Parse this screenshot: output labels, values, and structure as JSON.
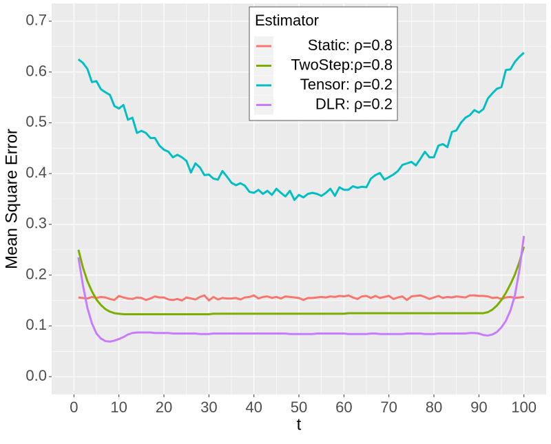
{
  "chart_data": {
    "type": "line",
    "xlabel": "t",
    "ylabel": "Mean Square Error",
    "x": [
      1,
      2,
      3,
      4,
      5,
      6,
      7,
      8,
      9,
      10,
      11,
      12,
      13,
      14,
      15,
      16,
      17,
      18,
      19,
      20,
      21,
      22,
      23,
      24,
      25,
      26,
      27,
      28,
      29,
      30,
      31,
      32,
      33,
      34,
      35,
      36,
      37,
      38,
      39,
      40,
      41,
      42,
      43,
      44,
      45,
      46,
      47,
      48,
      49,
      50,
      51,
      52,
      53,
      54,
      55,
      56,
      57,
      58,
      59,
      60,
      61,
      62,
      63,
      64,
      65,
      66,
      67,
      68,
      69,
      70,
      71,
      72,
      73,
      74,
      75,
      76,
      77,
      78,
      79,
      80,
      81,
      82,
      83,
      84,
      85,
      86,
      87,
      88,
      89,
      90,
      91,
      92,
      93,
      94,
      95,
      96,
      97,
      98,
      99,
      100
    ],
    "xlim": [
      -4.95,
      104.95
    ],
    "xticks": [
      0,
      10,
      20,
      30,
      40,
      50,
      60,
      70,
      80,
      90,
      100
    ],
    "ylim": [
      -0.035,
      0.735
    ],
    "yticks": [
      {
        "value": 0,
        "label": "0.0"
      },
      0.1,
      0.2,
      0.3,
      0.4,
      0.5,
      0.6,
      0.7
    ],
    "grid": true,
    "legend_title": "Estimator",
    "series": [
      {
        "name": "Static: ρ=0.8",
        "color": "#F8766D",
        "values": [
          0.156,
          0.155,
          0.154,
          0.157,
          0.155,
          0.157,
          0.156,
          0.153,
          0.151,
          0.159,
          0.156,
          0.154,
          0.153,
          0.156,
          0.155,
          0.151,
          0.154,
          0.158,
          0.156,
          0.156,
          0.152,
          0.151,
          0.153,
          0.15,
          0.156,
          0.154,
          0.152,
          0.157,
          0.16,
          0.15,
          0.157,
          0.152,
          0.155,
          0.154,
          0.154,
          0.155,
          0.152,
          0.156,
          0.157,
          0.16,
          0.154,
          0.157,
          0.158,
          0.155,
          0.157,
          0.154,
          0.158,
          0.157,
          0.156,
          0.155,
          0.151,
          0.155,
          0.155,
          0.156,
          0.157,
          0.156,
          0.158,
          0.157,
          0.159,
          0.158,
          0.16,
          0.156,
          0.153,
          0.158,
          0.159,
          0.155,
          0.159,
          0.155,
          0.157,
          0.159,
          0.153,
          0.156,
          0.158,
          0.151,
          0.158,
          0.159,
          0.16,
          0.157,
          0.153,
          0.156,
          0.159,
          0.155,
          0.157,
          0.156,
          0.158,
          0.157,
          0.156,
          0.16,
          0.16,
          0.159,
          0.159,
          0.158,
          0.155,
          0.156,
          0.153,
          0.156,
          0.157,
          0.155,
          0.156,
          0.157
        ]
      },
      {
        "name": "TwoStep:ρ=0.8",
        "color": "#7CAE00",
        "values": [
          0.25,
          0.215,
          0.188,
          0.168,
          0.152,
          0.141,
          0.133,
          0.128,
          0.125,
          0.124,
          0.123,
          0.123,
          0.123,
          0.123,
          0.123,
          0.123,
          0.123,
          0.123,
          0.123,
          0.123,
          0.123,
          0.123,
          0.123,
          0.123,
          0.123,
          0.123,
          0.123,
          0.123,
          0.123,
          0.123,
          0.124,
          0.124,
          0.124,
          0.124,
          0.124,
          0.124,
          0.124,
          0.124,
          0.124,
          0.124,
          0.124,
          0.124,
          0.124,
          0.124,
          0.124,
          0.124,
          0.124,
          0.124,
          0.124,
          0.124,
          0.124,
          0.124,
          0.124,
          0.124,
          0.124,
          0.124,
          0.124,
          0.124,
          0.124,
          0.124,
          0.125,
          0.125,
          0.125,
          0.125,
          0.125,
          0.125,
          0.125,
          0.125,
          0.125,
          0.125,
          0.125,
          0.125,
          0.125,
          0.125,
          0.125,
          0.125,
          0.125,
          0.125,
          0.125,
          0.125,
          0.125,
          0.125,
          0.125,
          0.125,
          0.125,
          0.125,
          0.125,
          0.125,
          0.125,
          0.125,
          0.125,
          0.127,
          0.132,
          0.14,
          0.151,
          0.165,
          0.182,
          0.201,
          0.226,
          0.256
        ]
      },
      {
        "name": "Tensor: ρ=0.2",
        "color": "#00BFC4",
        "values": [
          0.625,
          0.618,
          0.606,
          0.58,
          0.582,
          0.566,
          0.56,
          0.555,
          0.533,
          0.528,
          0.535,
          0.506,
          0.51,
          0.48,
          0.484,
          0.48,
          0.47,
          0.47,
          0.455,
          0.447,
          0.443,
          0.432,
          0.437,
          0.432,
          0.425,
          0.402,
          0.42,
          0.412,
          0.397,
          0.398,
          0.39,
          0.388,
          0.405,
          0.394,
          0.382,
          0.377,
          0.381,
          0.376,
          0.364,
          0.362,
          0.368,
          0.36,
          0.366,
          0.358,
          0.37,
          0.362,
          0.355,
          0.366,
          0.348,
          0.358,
          0.353,
          0.36,
          0.362,
          0.36,
          0.356,
          0.362,
          0.37,
          0.356,
          0.373,
          0.368,
          0.368,
          0.375,
          0.372,
          0.374,
          0.373,
          0.39,
          0.397,
          0.401,
          0.388,
          0.393,
          0.398,
          0.405,
          0.417,
          0.42,
          0.423,
          0.416,
          0.429,
          0.443,
          0.432,
          0.432,
          0.455,
          0.458,
          0.452,
          0.482,
          0.485,
          0.5,
          0.51,
          0.515,
          0.525,
          0.52,
          0.527,
          0.548,
          0.558,
          0.567,
          0.57,
          0.604,
          0.605,
          0.62,
          0.63,
          0.638
        ]
      },
      {
        "name": "DLR:  ρ=0.2",
        "color": "#C77CFF",
        "values": [
          0.235,
          0.18,
          0.135,
          0.105,
          0.085,
          0.075,
          0.07,
          0.069,
          0.071,
          0.074,
          0.078,
          0.083,
          0.086,
          0.087,
          0.087,
          0.087,
          0.087,
          0.086,
          0.086,
          0.086,
          0.086,
          0.085,
          0.085,
          0.085,
          0.085,
          0.085,
          0.085,
          0.084,
          0.084,
          0.084,
          0.085,
          0.085,
          0.085,
          0.085,
          0.085,
          0.085,
          0.085,
          0.085,
          0.085,
          0.085,
          0.085,
          0.085,
          0.085,
          0.085,
          0.085,
          0.085,
          0.085,
          0.084,
          0.084,
          0.084,
          0.084,
          0.084,
          0.084,
          0.085,
          0.085,
          0.085,
          0.085,
          0.085,
          0.085,
          0.085,
          0.084,
          0.084,
          0.084,
          0.084,
          0.084,
          0.085,
          0.085,
          0.084,
          0.084,
          0.084,
          0.084,
          0.084,
          0.084,
          0.085,
          0.085,
          0.085,
          0.085,
          0.084,
          0.084,
          0.084,
          0.085,
          0.085,
          0.085,
          0.085,
          0.085,
          0.085,
          0.085,
          0.086,
          0.086,
          0.085,
          0.082,
          0.081,
          0.083,
          0.088,
          0.097,
          0.11,
          0.13,
          0.16,
          0.21,
          0.277
        ]
      }
    ]
  }
}
